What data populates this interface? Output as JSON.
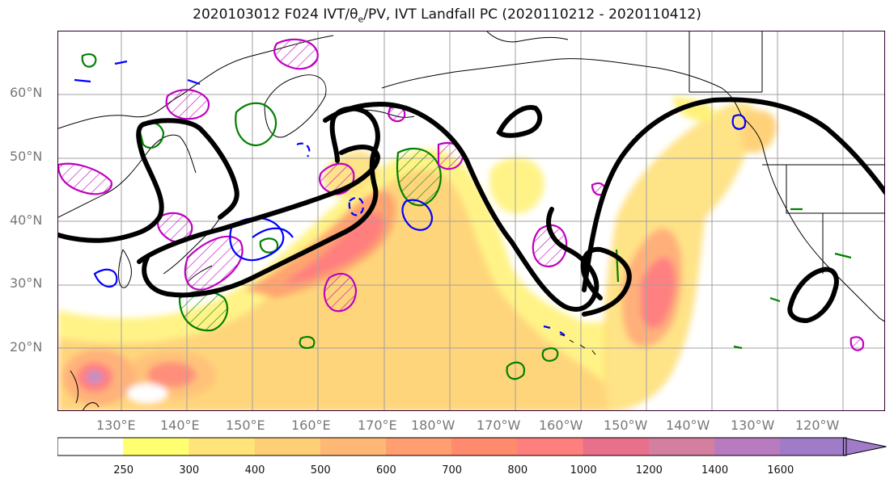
{
  "title": {
    "prefix": "2020103012 F024 IVT/θ",
    "sub": "e",
    "suffix": "/PV, IVT Landfall PC (2020110212 - 2020110412)"
  },
  "map": {
    "lat_labels": [
      {
        "label": "60°N",
        "lat": 60
      },
      {
        "label": "50°N",
        "lat": 50
      },
      {
        "label": "40°N",
        "lat": 40
      },
      {
        "label": "30°N",
        "lat": 30
      },
      {
        "label": "20°N",
        "lat": 20
      }
    ],
    "lon_labels": [
      {
        "label": "130°E",
        "lon": 130
      },
      {
        "label": "140°E",
        "lon": 140
      },
      {
        "label": "150°E",
        "lon": 150
      },
      {
        "label": "160°E",
        "lon": 160
      },
      {
        "label": "170°E",
        "lon": 170
      },
      {
        "label": "180°W",
        "lon": 180
      },
      {
        "label": "170°W",
        "lon": 190
      },
      {
        "label": "160°W",
        "lon": 200
      },
      {
        "label": "150°W",
        "lon": 210
      },
      {
        "label": "140°W",
        "lon": 220
      },
      {
        "label": "130°W",
        "lon": 230
      },
      {
        "label": "120°W",
        "lon": 240
      }
    ],
    "label_color": "#777777",
    "grid_color": "#a0a0a0"
  },
  "colorbar": {
    "bins": [
      {
        "label": "",
        "color": "#ffffff"
      },
      {
        "label": "250",
        "color": "#ffff70"
      },
      {
        "label": "300",
        "color": "#ffe47a"
      },
      {
        "label": "400",
        "color": "#ffcf78"
      },
      {
        "label": "500",
        "color": "#ffb873"
      },
      {
        "label": "600",
        "color": "#ff9e70"
      },
      {
        "label": "700",
        "color": "#ff8a6e"
      },
      {
        "label": "800",
        "color": "#ff7f7f"
      },
      {
        "label": "1000",
        "color": "#e8708a"
      },
      {
        "label": "1200",
        "color": "#d47ea0"
      },
      {
        "label": "1400",
        "color": "#b97bbf"
      },
      {
        "label": "1600",
        "color": "#a07cc8"
      }
    ],
    "extend": "max"
  },
  "contour_colors": {
    "landfall_pc": "#000000",
    "theta_e": "#008000",
    "pv_positive": "#c000c0",
    "pv_negative": "#0000ff"
  }
}
